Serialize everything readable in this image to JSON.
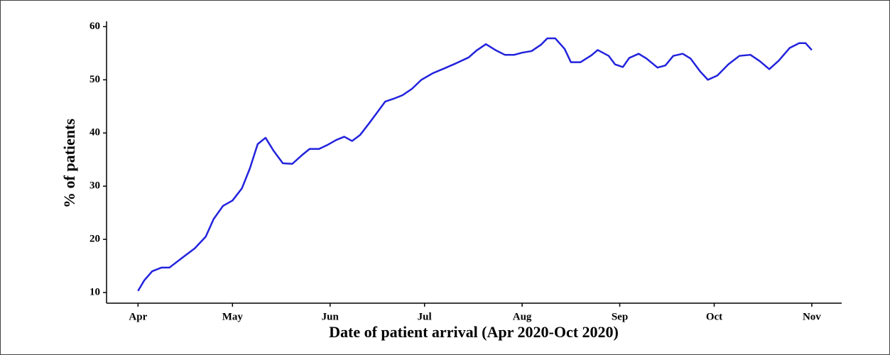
{
  "chart_data": {
    "type": "line",
    "x_label": "Date of patient arrival (Apr 2020-Oct 2020)",
    "y_label": "% of patients",
    "x": [
      0,
      2,
      4.5,
      7.5,
      10,
      13.5,
      18,
      21.5,
      24,
      27,
      30,
      33,
      35.5,
      38,
      40.5,
      43,
      46,
      49,
      52,
      54.5,
      57.5,
      60,
      63,
      65.5,
      68,
      70.5,
      73.5,
      76,
      78.5,
      81,
      84,
      87,
      90,
      93.5,
      97.5,
      101,
      105,
      107.5,
      110.5,
      113.5,
      116.5,
      119.5,
      122,
      125,
      128,
      130,
      132.5,
      135.5,
      137.5,
      140.5,
      144,
      146,
      149.5,
      151.5,
      154,
      156,
      159,
      161.5,
      165,
      167.5,
      170,
      173,
      175.5,
      178.5,
      181,
      184,
      187.5,
      191,
      194.5,
      197.5,
      200.5,
      203.5,
      207,
      210,
      212,
      214
    ],
    "series": [
      {
        "color": "#2222dd",
        "values": [
          10.3,
          12.3,
          14,
          14.7,
          14.7,
          16.3,
          18.3,
          20.5,
          23.8,
          26.3,
          27.3,
          29.6,
          33.3,
          37.9,
          39.1,
          36.7,
          34.3,
          34.2,
          35.8,
          37,
          37,
          37.7,
          38.7,
          39.3,
          38.5,
          39.6,
          41.9,
          43.9,
          45.9,
          46.4,
          47.1,
          48.3,
          50,
          51.2,
          52.2,
          53.1,
          54.2,
          55.5,
          56.7,
          55.6,
          54.7,
          54.7,
          55.1,
          55.4,
          56.6,
          57.8,
          57.8,
          55.8,
          53.3,
          53.3,
          54.6,
          55.6,
          54.5,
          52.9,
          52.4,
          54.1,
          54.9,
          54,
          52.3,
          52.7,
          54.5,
          54.9,
          54,
          51.6,
          50,
          50.8,
          52.9,
          54.5,
          54.7,
          53.5,
          52,
          53.6,
          56,
          56.9,
          56.9,
          55.6
        ]
      }
    ],
    "xlim": [
      -10,
      223.5
    ],
    "xticks": [
      {
        "value": 0,
        "label": "Apr"
      },
      {
        "value": 30,
        "label": "May"
      },
      {
        "value": 61,
        "label": "Jun"
      },
      {
        "value": 91,
        "label": "Jul"
      },
      {
        "value": 122,
        "label": "Aug"
      },
      {
        "value": 153,
        "label": "Sep"
      },
      {
        "value": 183,
        "label": "Oct"
      },
      {
        "value": 214,
        "label": "Nov"
      }
    ],
    "ylim": [
      8,
      61
    ],
    "yticks": [
      10,
      20,
      30,
      40,
      50,
      60
    ]
  }
}
